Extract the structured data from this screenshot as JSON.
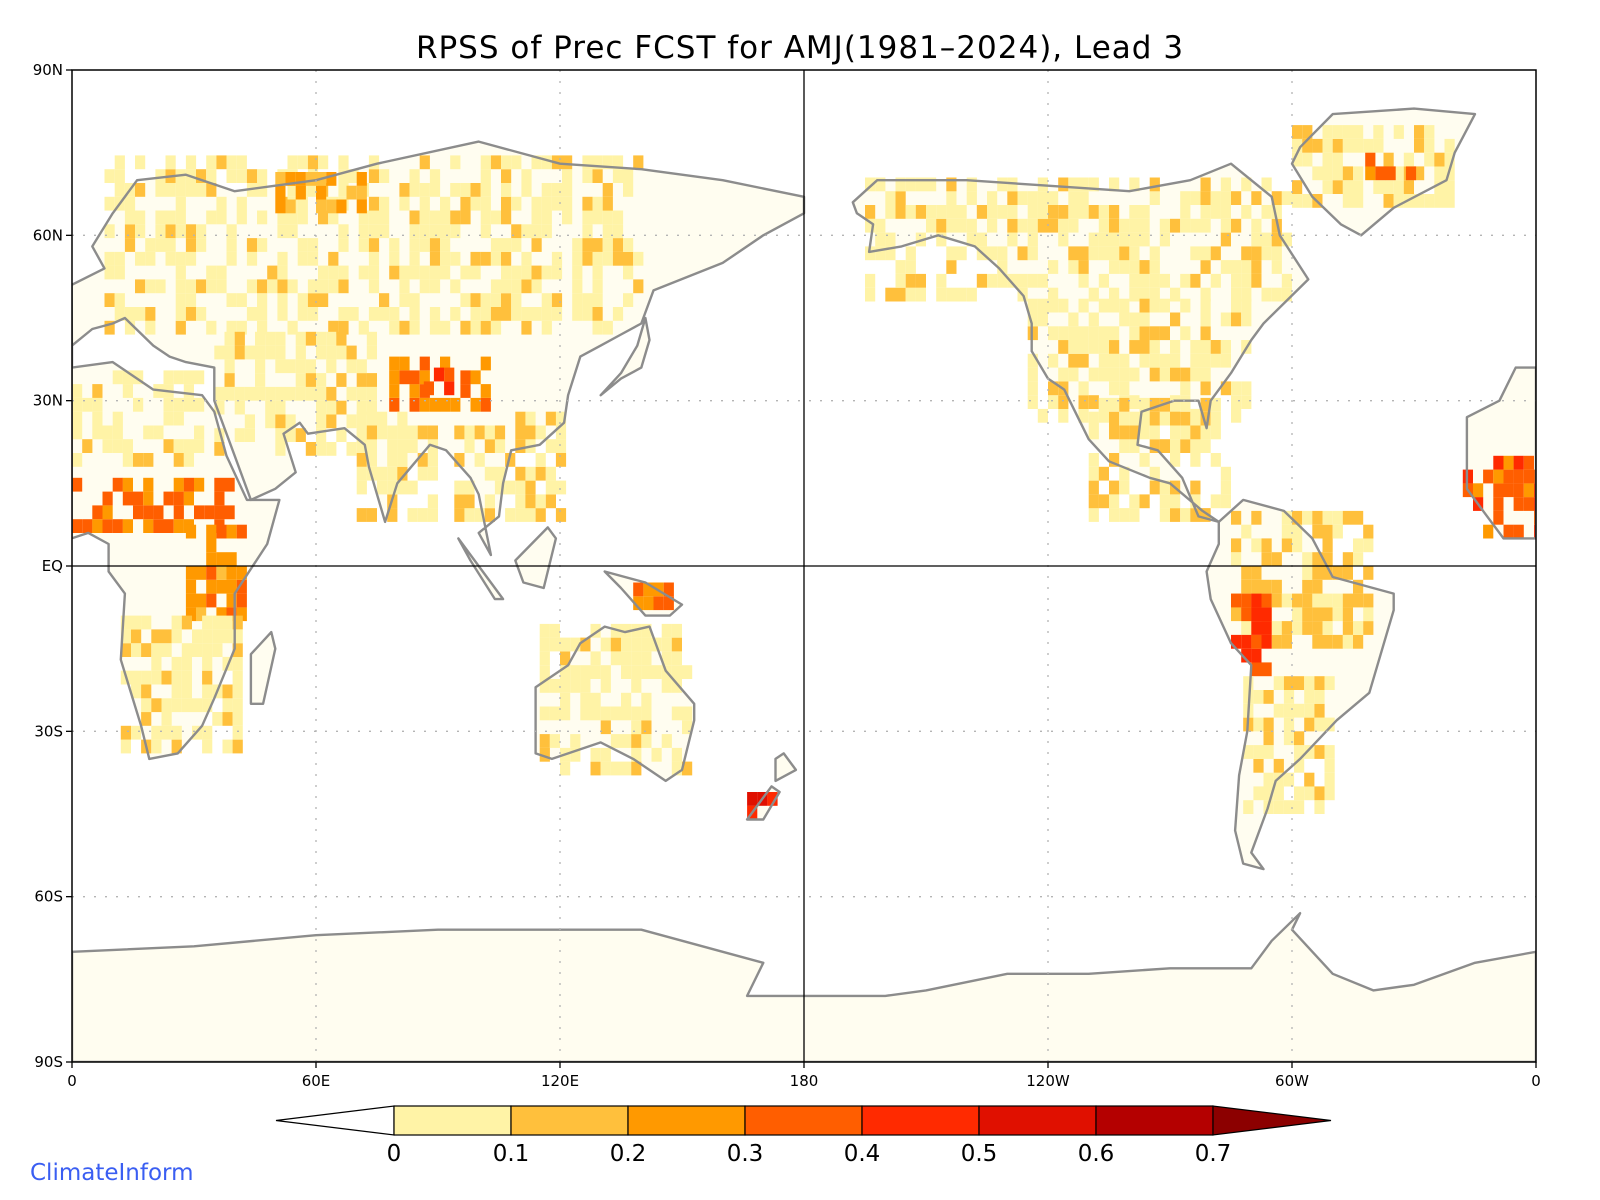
{
  "title": "RPSS of Prec FCST for AMJ(1981–2024), Lead 3",
  "brand": "ClimateInform",
  "colors": {
    "coast": "#8c8c8c",
    "lakes": "#000000",
    "grid": "#b4b4b4",
    "frame": "#000000"
  },
  "axes": {
    "x_ticks": [
      "0",
      "60E",
      "120E",
      "180",
      "120W",
      "60W",
      "0"
    ],
    "y_ticks": [
      "90N",
      "60N",
      "30N",
      "EQ",
      "30S",
      "60S",
      "90S"
    ],
    "lon_range": [
      0,
      360
    ],
    "lat_range": [
      -90,
      90
    ],
    "grid": "dotted every 60° lon / 30° lat; solid at Equator and 180"
  },
  "colorbar": {
    "labels": [
      "0",
      "0.1",
      "0.2",
      "0.3",
      "0.4",
      "0.5",
      "0.6",
      "0.7"
    ],
    "bins": [
      {
        "range": "<0",
        "color": "#ffffff"
      },
      {
        "range": "0-0.1",
        "color": "#fff3a6"
      },
      {
        "range": "0.1-0.2",
        "color": "#ffc03c"
      },
      {
        "range": "0.2-0.3",
        "color": "#ff9900"
      },
      {
        "range": "0.3-0.4",
        "color": "#ff5e00"
      },
      {
        "range": "0.4-0.5",
        "color": "#ff2a00"
      },
      {
        "range": "0.5-0.6",
        "color": "#e01000"
      },
      {
        "range": "0.6-0.7",
        "color": "#b40000"
      },
      {
        "range": ">0.7",
        "color": "#8c0000"
      }
    ]
  },
  "field_regions": [
    {
      "region": "northern-eurasia",
      "lon": [
        8,
        140
      ],
      "lat": [
        42,
        73
      ],
      "value": 0.05
    },
    {
      "region": "west-siberia-high",
      "lon": [
        50,
        72
      ],
      "lat": [
        64,
        70
      ],
      "value": 0.18
    },
    {
      "region": "tibetan-plateau",
      "lon": [
        78,
        102
      ],
      "lat": [
        28,
        38
      ],
      "value": 0.3
    },
    {
      "region": "tibet-core",
      "lon": [
        84,
        96
      ],
      "lat": [
        31,
        35
      ],
      "value": 0.45
    },
    {
      "region": "middle-east",
      "lon": [
        35,
        75
      ],
      "lat": [
        20,
        42
      ],
      "value": 0.05
    },
    {
      "region": "india",
      "lon": [
        70,
        88
      ],
      "lat": [
        8,
        28
      ],
      "value": 0.06
    },
    {
      "region": "se-asia",
      "lon": [
        94,
        120
      ],
      "lat": [
        8,
        28
      ],
      "value": 0.07
    },
    {
      "region": "sahel",
      "lon": [
        0,
        40
      ],
      "lat": [
        6,
        16
      ],
      "value": 0.32
    },
    {
      "region": "east-africa",
      "lon": [
        28,
        42
      ],
      "lat": [
        -10,
        6
      ],
      "value": 0.25
    },
    {
      "region": "southern-africa",
      "lon": [
        12,
        40
      ],
      "lat": [
        -34,
        -10
      ],
      "value": 0.06
    },
    {
      "region": "north-africa",
      "lon": [
        0,
        32
      ],
      "lat": [
        18,
        35
      ],
      "value": 0.04
    },
    {
      "region": "australia",
      "lon": [
        115,
        152
      ],
      "lat": [
        -38,
        -12
      ],
      "value": 0.05
    },
    {
      "region": "new-zealand-south",
      "lon": [
        166,
        172
      ],
      "lat": [
        -46,
        -42
      ],
      "value": 0.5
    },
    {
      "region": "new-guinea",
      "lon": [
        138,
        148
      ],
      "lat": [
        -8,
        -4
      ],
      "value": 0.3
    },
    {
      "region": "alaska-canada",
      "lon": [
        195,
        300
      ],
      "lat": [
        48,
        70
      ],
      "value": 0.05
    },
    {
      "region": "greenland",
      "lon": [
        300,
        340
      ],
      "lat": [
        65,
        80
      ],
      "value": 0.06
    },
    {
      "region": "greenland-east",
      "lon": [
        318,
        330
      ],
      "lat": [
        70,
        73
      ],
      "value": 0.33
    },
    {
      "region": "conus",
      "lon": [
        235,
        290
      ],
      "lat": [
        26,
        48
      ],
      "value": 0.05
    },
    {
      "region": "mexico-central-america",
      "lon": [
        250,
        285
      ],
      "lat": [
        8,
        30
      ],
      "value": 0.06
    },
    {
      "region": "amazon",
      "lon": [
        285,
        320
      ],
      "lat": [
        -15,
        8
      ],
      "value": 0.12
    },
    {
      "region": "andes",
      "lon": [
        285,
        295
      ],
      "lat": [
        -20,
        -5
      ],
      "value": 0.38
    },
    {
      "region": "southern-south-america",
      "lon": [
        288,
        310
      ],
      "lat": [
        -45,
        -20
      ],
      "value": 0.07
    },
    {
      "region": "west-africa-right",
      "lon": [
        342,
        360
      ],
      "lat": [
        5,
        20
      ],
      "value": 0.35
    }
  ]
}
